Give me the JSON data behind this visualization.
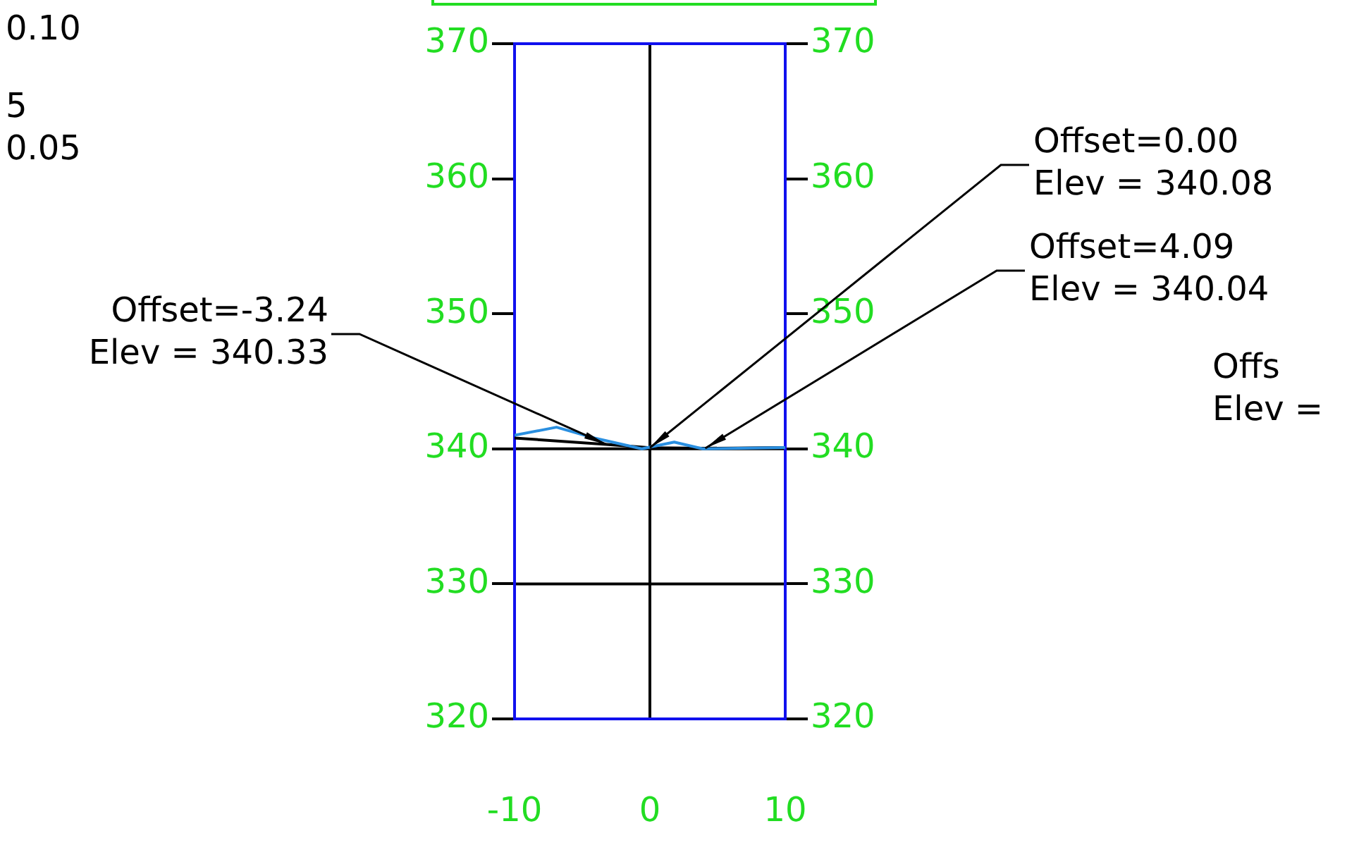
{
  "chart_data": {
    "type": "line",
    "xlim": [
      -10,
      10
    ],
    "xticks": [
      -10,
      0,
      10
    ],
    "ylim": [
      320,
      370
    ],
    "yticks": [
      320,
      330,
      340,
      350,
      360,
      370
    ],
    "y2lim": [
      320,
      370
    ],
    "y2ticks": [
      320,
      330,
      340,
      350,
      360,
      370
    ],
    "series": [
      {
        "color": "#2a8fe0",
        "x": [
          -10,
          -6.9,
          -5.5,
          -4.1,
          -0.6,
          1.8,
          3.9,
          10
        ],
        "values": [
          341.0,
          341.6,
          341.2,
          340.8,
          340.0,
          340.5,
          340.0,
          340.1
        ]
      },
      {
        "color": "#000000",
        "x": [
          -10,
          -3.24,
          0,
          4.09,
          10
        ],
        "values": [
          340.8,
          340.33,
          340.08,
          340.04,
          340.1
        ]
      }
    ],
    "ref_lines": [
      {
        "axis": "y",
        "value": 340,
        "color": "#000000"
      },
      {
        "axis": "y",
        "value": 330,
        "color": "#000000"
      },
      {
        "axis": "x",
        "value": 0,
        "color": "#000000"
      }
    ],
    "annotations": [
      {
        "text": "Offset=-3.24\nElev = 340.33",
        "x": -3.24,
        "y": 340.33
      },
      {
        "text": "Offset=0.00\nElev = 340.08",
        "x": 0,
        "y": 340.08
      },
      {
        "text": "Offset=4.09\nElev = 340.04",
        "x": 4.09,
        "y": 340.04
      },
      "0.10",
      "5",
      "0.05",
      "Offs\nElev ="
    ],
    "grid": false,
    "legend": false,
    "marker": "none",
    "line_style": "solid"
  }
}
